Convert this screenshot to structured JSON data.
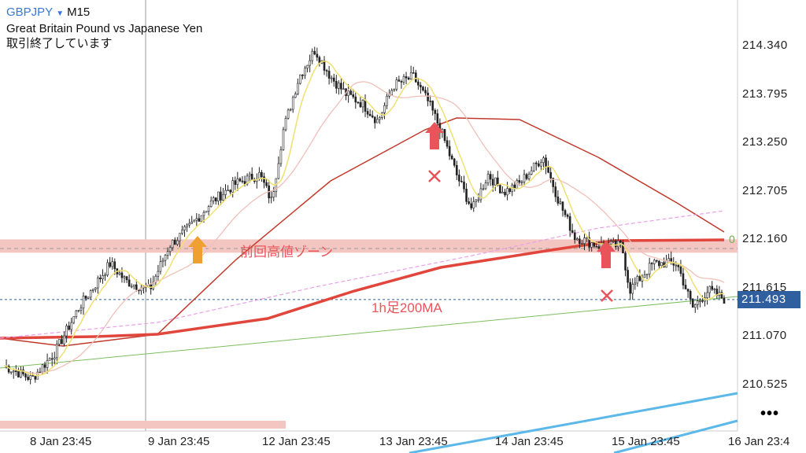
{
  "header": {
    "symbol": "GBPJPY",
    "timeframe": "M15",
    "description": "Great Britain Pound vs Japanese Yen",
    "status": "取引終了しています"
  },
  "axis": {
    "y_ticks": [
      "214.340",
      "213.795",
      "213.250",
      "212.705",
      "212.160",
      "211.615",
      "211.070",
      "210.525"
    ],
    "x_ticks": [
      "8 Jan 23:45",
      "9 Jan 23:45",
      "12 Jan 23:45",
      "13 Jan 23:45",
      "14 Jan 23:45",
      "15 Jan 23:45",
      "16 Jan 23:4"
    ],
    "current_price": "211.493",
    "zero_label": "0",
    "more_label": "•••"
  },
  "annotations": {
    "zone_label": "前回高値ゾーン",
    "ma_label": "1h足200MA"
  },
  "colors": {
    "symbol": "#3a78d8",
    "price_tag": "#2f5f9e",
    "zone": "#f4c6c2",
    "ma200_1h": "#e0463c",
    "ma_slow": "#c0392b",
    "ma_fast": "#f0e070",
    "ma_mid": "#f0c0b8",
    "ma_dashed": "#e8a0e8",
    "trendline_green": "#7cbf5c",
    "trendline_blue": "#5bb8e8",
    "arrow_orange": "#f0a030",
    "arrow_red": "#e9545a"
  },
  "chart_data": {
    "type": "candlestick",
    "symbol": "GBPJPY",
    "timeframe": "M15",
    "ylim": [
      210.3,
      214.6
    ],
    "zone": [
      212.02,
      212.17
    ],
    "current_price": 211.493,
    "close_path": [
      [
        "8 Jan 18:00",
        210.75
      ],
      [
        "8 Jan 21:00",
        210.6
      ],
      [
        "9 Jan 00:00",
        210.9
      ],
      [
        "9 Jan 03:00",
        211.4
      ],
      [
        "9 Jan 08:00",
        211.9
      ],
      [
        "9 Jan 11:00",
        211.7
      ],
      [
        "9 Jan 20:00",
        211.6
      ],
      [
        "10 Jan 02:00",
        212.1
      ],
      [
        "10 Jan 06:00",
        212.3
      ],
      [
        "10 Jan 12:00",
        212.6
      ],
      [
        "10 Jan 18:00",
        212.8
      ],
      [
        "12 Jan 03:00",
        212.9
      ],
      [
        "12 Jan 08:00",
        212.6
      ],
      [
        "12 Jan 14:00",
        213.4
      ],
      [
        "12 Jan 19:00",
        214.0
      ],
      [
        "13 Jan 00:00",
        214.3
      ],
      [
        "13 Jan 04:00",
        214.0
      ],
      [
        "13 Jan 08:00",
        213.8
      ],
      [
        "13 Jan 12:00",
        213.7
      ],
      [
        "13 Jan 16:00",
        213.5
      ],
      [
        "13 Jan 19:00",
        213.9
      ],
      [
        "14 Jan 00:00",
        214.0
      ],
      [
        "14 Jan 04:00",
        213.7
      ],
      [
        "14 Jan 07:00",
        213.4
      ],
      [
        "14 Jan 10:00",
        212.9
      ],
      [
        "14 Jan 14:00",
        212.5
      ],
      [
        "14 Jan 17:00",
        212.9
      ],
      [
        "14 Jan 21:00",
        212.7
      ],
      [
        "15 Jan 01:00",
        212.8
      ],
      [
        "15 Jan 06:00",
        213.1
      ],
      [
        "15 Jan 10:00",
        212.6
      ],
      [
        "15 Jan 14:00",
        212.2
      ],
      [
        "15 Jan 20:00",
        212.1
      ],
      [
        "16 Jan 02:00",
        212.1
      ],
      [
        "16 Jan 04:00",
        211.6
      ],
      [
        "16 Jan 10:00",
        211.9
      ],
      [
        "16 Jan 16:00",
        211.9
      ],
      [
        "16 Jan 20:00",
        211.4
      ],
      [
        "17 Jan 00:00",
        211.6
      ],
      [
        "17 Jan 04:00",
        211.5
      ]
    ]
  }
}
